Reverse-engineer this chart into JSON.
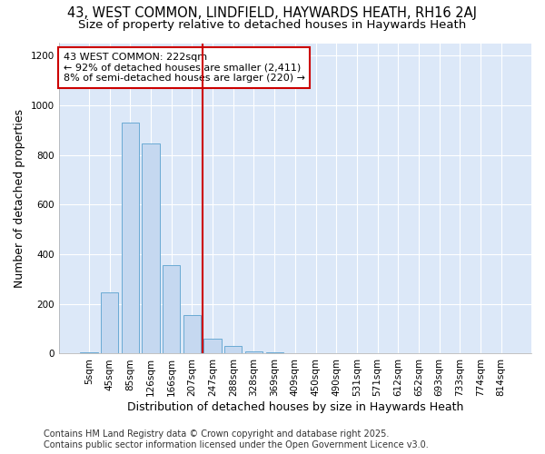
{
  "title_line1": "43, WEST COMMON, LINDFIELD, HAYWARDS HEATH, RH16 2AJ",
  "title_line2": "Size of property relative to detached houses in Haywards Heath",
  "xlabel": "Distribution of detached houses by size in Haywards Heath",
  "ylabel": "Number of detached properties",
  "bar_labels": [
    "5sqm",
    "45sqm",
    "85sqm",
    "126sqm",
    "166sqm",
    "207sqm",
    "247sqm",
    "288sqm",
    "328sqm",
    "369sqm",
    "409sqm",
    "450sqm",
    "490sqm",
    "531sqm",
    "571sqm",
    "612sqm",
    "652sqm",
    "693sqm",
    "733sqm",
    "774sqm",
    "814sqm"
  ],
  "bar_values": [
    5,
    247,
    930,
    847,
    357,
    157,
    60,
    30,
    10,
    5,
    2,
    1,
    0,
    0,
    0,
    0,
    0,
    0,
    0,
    0,
    0
  ],
  "bar_color": "#c5d8f0",
  "bar_edge_color": "#6aaad4",
  "vline_x_idx": 6,
  "vline_color": "#cc0000",
  "annotation_text": "43 WEST COMMON: 222sqm\n← 92% of detached houses are smaller (2,411)\n8% of semi-detached houses are larger (220) →",
  "annotation_box_color": "#cc0000",
  "ylim": [
    0,
    1250
  ],
  "yticks": [
    0,
    200,
    400,
    600,
    800,
    1000,
    1200
  ],
  "plot_bg_color": "#dce8f8",
  "grid_color": "#ffffff",
  "figure_bg_color": "#ffffff",
  "footer_text": "Contains HM Land Registry data © Crown copyright and database right 2025.\nContains public sector information licensed under the Open Government Licence v3.0.",
  "title_fontsize": 10.5,
  "subtitle_fontsize": 9.5,
  "annotation_fontsize": 8,
  "tick_fontsize": 7.5,
  "label_fontsize": 9,
  "footer_fontsize": 7
}
